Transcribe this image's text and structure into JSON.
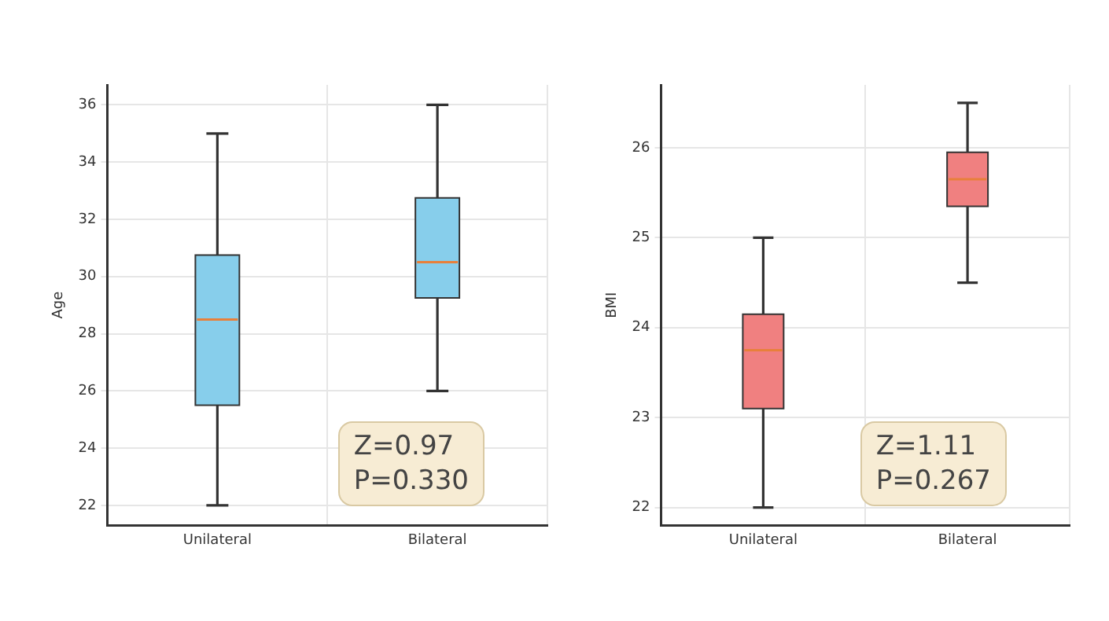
{
  "chart_data": [
    {
      "type": "box",
      "ylabel": "Age",
      "categories": [
        "Unilateral",
        "Bilateral"
      ],
      "series": [
        {
          "color": "#87ceeb",
          "boxes": [
            {
              "low": 22,
              "q1": 25.5,
              "median": 28.5,
              "q3": 30.75,
              "high": 35
            },
            {
              "low": 26,
              "q1": 29.25,
              "median": 30.5,
              "q3": 32.75,
              "high": 36
            }
          ]
        }
      ],
      "ylim": [
        21.3,
        36.7
      ],
      "yticks": [
        22,
        24,
        26,
        28,
        30,
        32,
        34,
        36
      ],
      "grid": true,
      "annotations": [
        "Z=0.97\nP=0.330"
      ]
    },
    {
      "type": "box",
      "ylabel": "BMI",
      "categories": [
        "Unilateral",
        "Bilateral"
      ],
      "series": [
        {
          "color": "#f08080",
          "boxes": [
            {
              "low": 22,
              "q1": 23.1,
              "median": 23.75,
              "q3": 24.15,
              "high": 25
            },
            {
              "low": 24.5,
              "q1": 25.35,
              "median": 25.65,
              "q3": 25.95,
              "high": 26.5
            }
          ]
        }
      ],
      "ylim": [
        21.8,
        26.7
      ],
      "yticks": [
        22,
        23,
        24,
        25,
        26
      ],
      "grid": true,
      "annotations": [
        "Z=1.11\nP=0.267"
      ]
    }
  ]
}
